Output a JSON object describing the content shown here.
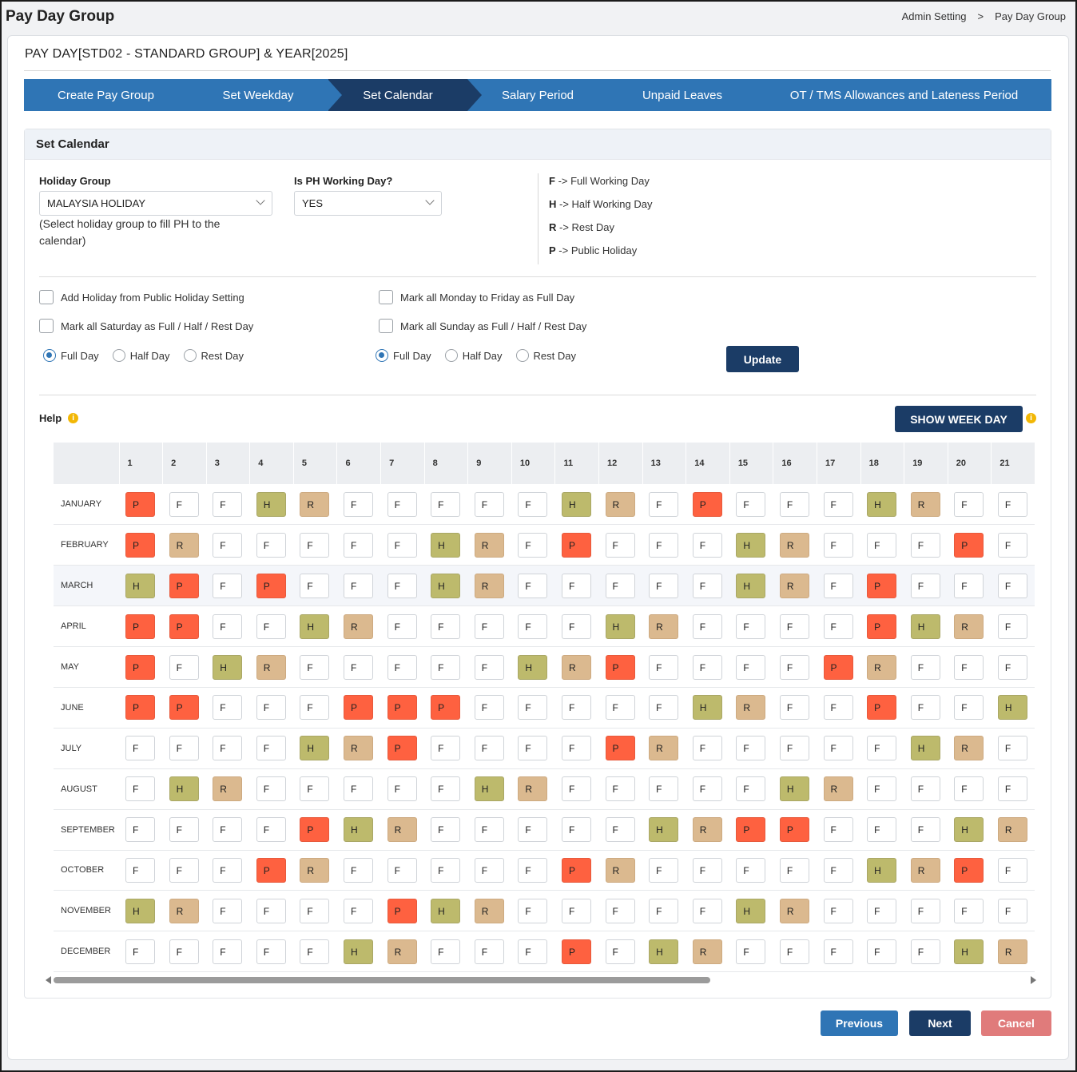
{
  "header": {
    "title": "Pay Day Group",
    "breadcrumb": [
      "Admin Setting",
      ">",
      "Pay Day Group"
    ]
  },
  "card": {
    "title": "PAY DAY[STD02 - STANDARD GROUP] & YEAR[2025]"
  },
  "wizard": {
    "steps": [
      "Create Pay Group",
      "Set Weekday",
      "Set Calendar",
      "Salary Period",
      "Unpaid Leaves",
      "OT / TMS Allowances and Lateness Period"
    ],
    "active": "Set Calendar"
  },
  "panel": {
    "title": "Set Calendar",
    "holiday_group_label": "Holiday Group",
    "holiday_group_value": "MALAYSIA HOLIDAY",
    "holiday_hint": "(Select holiday group to fill PH to the calendar)",
    "ph_working_label": "Is PH Working Day?",
    "ph_working_value": "YES",
    "legend": [
      {
        "key": "F",
        "text": "-> Full Working Day"
      },
      {
        "key": "H",
        "text": "-> Half Working Day"
      },
      {
        "key": "R",
        "text": "-> Rest Day"
      },
      {
        "key": "P",
        "text": "-> Public Holiday"
      }
    ],
    "chk_add_holiday": "Add Holiday from Public Holiday Setting",
    "chk_mon_fri": "Mark all Monday to Friday as Full Day",
    "chk_saturday": "Mark all Saturday as Full / Half / Rest Day",
    "chk_sunday": "Mark all Sunday as Full / Half / Rest Day",
    "radio_options": [
      "Full Day",
      "Half Day",
      "Rest Day"
    ],
    "update_button": "Update",
    "help_label": "Help",
    "info_glyph": "i",
    "show_week_day_button": "SHOW WEEK DAY"
  },
  "calendar": {
    "days": [
      "1",
      "2",
      "3",
      "4",
      "5",
      "6",
      "7",
      "8",
      "9",
      "10",
      "11",
      "12",
      "13",
      "14",
      "15",
      "16",
      "17",
      "18",
      "19",
      "20",
      "21"
    ],
    "months": [
      {
        "name": "JANUARY",
        "cells": [
          "P",
          "F",
          "F",
          "H",
          "R",
          "F",
          "F",
          "F",
          "F",
          "F",
          "H",
          "R",
          "F",
          "P",
          "F",
          "F",
          "F",
          "H",
          "R",
          "F",
          "F"
        ]
      },
      {
        "name": "FEBRUARY",
        "cells": [
          "P",
          "R",
          "F",
          "F",
          "F",
          "F",
          "F",
          "H",
          "R",
          "F",
          "P",
          "F",
          "F",
          "F",
          "H",
          "R",
          "F",
          "F",
          "F",
          "P",
          "F"
        ]
      },
      {
        "name": "MARCH",
        "cells": [
          "H",
          "P",
          "F",
          "P",
          "F",
          "F",
          "F",
          "H",
          "R",
          "F",
          "F",
          "F",
          "F",
          "F",
          "H",
          "R",
          "F",
          "P",
          "F",
          "F",
          "F"
        ]
      },
      {
        "name": "APRIL",
        "cells": [
          "P",
          "P",
          "F",
          "F",
          "H",
          "R",
          "F",
          "F",
          "F",
          "F",
          "F",
          "H",
          "R",
          "F",
          "F",
          "F",
          "F",
          "P",
          "H",
          "R",
          "F"
        ]
      },
      {
        "name": "MAY",
        "cells": [
          "P",
          "F",
          "H",
          "R",
          "F",
          "F",
          "F",
          "F",
          "F",
          "H",
          "R",
          "P",
          "F",
          "F",
          "F",
          "F",
          "P",
          "R",
          "F",
          "F",
          "F"
        ]
      },
      {
        "name": "JUNE",
        "cells": [
          "P",
          "P",
          "F",
          "F",
          "F",
          "P",
          "P",
          "P",
          "F",
          "F",
          "F",
          "F",
          "F",
          "H",
          "R",
          "F",
          "F",
          "P",
          "F",
          "F",
          "H"
        ]
      },
      {
        "name": "JULY",
        "cells": [
          "F",
          "F",
          "F",
          "F",
          "H",
          "R",
          "P",
          "F",
          "F",
          "F",
          "F",
          "P",
          "R",
          "F",
          "F",
          "F",
          "F",
          "F",
          "H",
          "R",
          "F"
        ]
      },
      {
        "name": "AUGUST",
        "cells": [
          "F",
          "H",
          "R",
          "F",
          "F",
          "F",
          "F",
          "F",
          "H",
          "R",
          "F",
          "F",
          "F",
          "F",
          "F",
          "H",
          "R",
          "F",
          "F",
          "F",
          "F"
        ]
      },
      {
        "name": "SEPTEMBER",
        "cells": [
          "F",
          "F",
          "F",
          "F",
          "P",
          "H",
          "R",
          "F",
          "F",
          "F",
          "F",
          "F",
          "H",
          "R",
          "P",
          "P",
          "F",
          "F",
          "F",
          "H",
          "R"
        ]
      },
      {
        "name": "OCTOBER",
        "cells": [
          "F",
          "F",
          "F",
          "P",
          "R",
          "F",
          "F",
          "F",
          "F",
          "F",
          "P",
          "R",
          "F",
          "F",
          "F",
          "F",
          "F",
          "H",
          "R",
          "P",
          "F"
        ]
      },
      {
        "name": "NOVEMBER",
        "cells": [
          "H",
          "R",
          "F",
          "F",
          "F",
          "F",
          "P",
          "H",
          "R",
          "F",
          "F",
          "F",
          "F",
          "F",
          "H",
          "R",
          "F",
          "F",
          "F",
          "F",
          "F"
        ]
      },
      {
        "name": "DECEMBER",
        "cells": [
          "F",
          "F",
          "F",
          "F",
          "F",
          "H",
          "R",
          "F",
          "F",
          "F",
          "P",
          "F",
          "H",
          "R",
          "F",
          "F",
          "F",
          "F",
          "F",
          "H",
          "R"
        ]
      }
    ]
  },
  "footer": {
    "previous": "Previous",
    "next": "Next",
    "cancel": "Cancel"
  },
  "colors": {
    "wizard": "#2f75b5",
    "wizard_active": "#1b3c66",
    "public_holiday": "#fe6140",
    "half_day": "#bdba6c",
    "rest_day": "#dbb98f",
    "cancel": "#e07b7b"
  }
}
